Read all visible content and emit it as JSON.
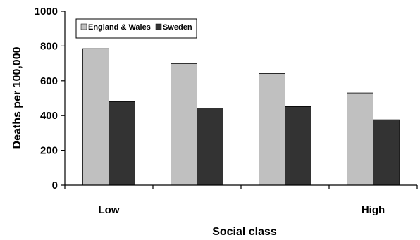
{
  "chart_data": {
    "type": "bar",
    "categories": [
      "Low",
      "",
      "",
      "High"
    ],
    "series": [
      {
        "name": "England & Wales",
        "values": [
          785,
          698,
          642,
          530
        ],
        "color": "#c0c0c0"
      },
      {
        "name": "Sweden",
        "values": [
          480,
          443,
          452,
          376
        ],
        "color": "#333333"
      }
    ],
    "xlabel": "Social class",
    "ylabel": "Deaths per 100,000",
    "ylim": [
      0,
      1000
    ],
    "yticks": [
      0,
      200,
      400,
      600,
      800,
      1000
    ],
    "grid": false,
    "legend_position": "top-left"
  }
}
